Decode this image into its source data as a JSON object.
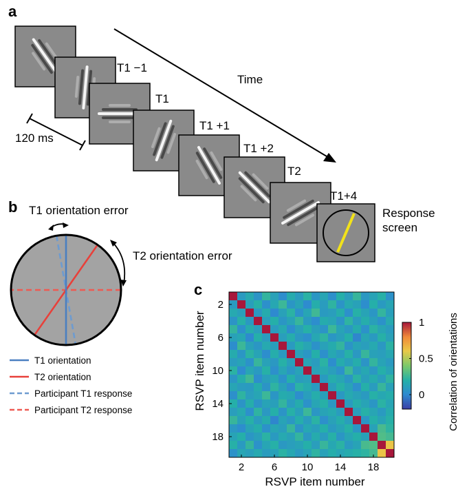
{
  "panel_a": {
    "letter": "a",
    "time_label": "Time",
    "duration_label": "120 ms",
    "frame_labels": [
      "T1 −1",
      "T1",
      "T1 +1",
      "T1 +2",
      "T2",
      "T1+4"
    ],
    "response_label_line1": "Response",
    "response_label_line2": "screen",
    "frame_orientations_deg": [
      -35,
      5,
      90,
      20,
      -30,
      -45,
      60
    ],
    "response_line_color": "#f2e21a"
  },
  "panel_b": {
    "letter": "b",
    "t1_error_label": "T1 orientation error",
    "t2_error_label": "T2 orientation error",
    "colors": {
      "t1": "#4a7fc1",
      "t2": "#e8403a",
      "t1_response": "#6d9bd0",
      "t2_response": "#ee5a52",
      "disc": "#a3a3a3"
    },
    "orientations_deg": {
      "t1": 90,
      "t2": 55,
      "t1_response": 100,
      "t2_response": 0
    },
    "legend": [
      {
        "label": "T1 orientation",
        "style": "solid",
        "color": "#4a7fc1"
      },
      {
        "label": "T2 orientation",
        "style": "solid",
        "color": "#e8403a"
      },
      {
        "label": "Participant T1 response",
        "style": "dashed",
        "color": "#6d9bd0"
      },
      {
        "label": "Participant T2 response",
        "style": "dashed",
        "color": "#ee5a52"
      }
    ]
  },
  "chart_data": {
    "type": "heatmap",
    "letter": "c",
    "xlabel": "RSVP item number",
    "ylabel": "RSVP item number",
    "xticks": [
      2,
      6,
      10,
      14,
      18
    ],
    "yticks": [
      2,
      6,
      10,
      14,
      18
    ],
    "n_items": 20,
    "colorbar": {
      "label": "Correlation of orientations",
      "ticks": [
        0,
        0.5,
        1
      ],
      "range": [
        -0.2,
        1
      ]
    },
    "diagonal_value": 1,
    "values": [
      [
        1,
        0.08,
        0.16,
        0.05,
        0.23,
        0.12,
        0.02,
        0.17,
        0.09,
        0.21,
        0.06,
        0.14,
        0.03,
        0.19,
        0.1,
        0.24,
        0.07,
        0.13,
        0.2,
        0.04
      ],
      [
        0.08,
        1,
        0.11,
        0.2,
        0.03,
        0.15,
        0.25,
        0.06,
        0.13,
        0.01,
        0.18,
        0.09,
        0.22,
        0.05,
        0.16,
        0.12,
        0.02,
        0.19,
        0.08,
        0.14
      ],
      [
        0.16,
        0.11,
        1,
        0.07,
        0.17,
        0,
        0.12,
        0.21,
        0.04,
        0.14,
        0.26,
        0.08,
        0.1,
        0.18,
        0.03,
        0.2,
        0.13,
        0.06,
        0.23,
        0.11
      ],
      [
        0.05,
        0.2,
        0.07,
        1,
        0.1,
        0.19,
        0.06,
        0.13,
        0.24,
        0.08,
        0.02,
        0.17,
        0.14,
        0.05,
        0.22,
        0.09,
        0.18,
        0.11,
        0.04,
        0.16
      ],
      [
        0.23,
        0.03,
        0.17,
        0.1,
        1,
        0.09,
        0.16,
        0.02,
        0.12,
        0.2,
        0.11,
        0.05,
        0.25,
        0.13,
        0.07,
        0.17,
        0.04,
        0.21,
        0.14,
        0.09
      ],
      [
        0.12,
        0.15,
        0,
        0.19,
        0.09,
        1,
        0.1,
        0.18,
        0.07,
        0.03,
        0.15,
        0.22,
        0.06,
        0.11,
        0.19,
        -0.01,
        0.14,
        0.08,
        0.2,
        0.12
      ],
      [
        0.02,
        0.25,
        0.12,
        0.06,
        0.16,
        0.1,
        1,
        0.08,
        0.2,
        0.14,
        0.04,
        0.12,
        0.17,
        0.23,
        0.05,
        0.13,
        0.1,
        0.16,
        0.07,
        0.21
      ],
      [
        0.17,
        0.06,
        0.21,
        0.13,
        0.02,
        0.18,
        0.08,
        1,
        0.11,
        0.06,
        0.19,
        0.03,
        0.15,
        0.09,
        0.2,
        0.07,
        0.24,
        0.12,
        0.1,
        0.15
      ],
      [
        0.09,
        0.13,
        0.04,
        0.24,
        0.12,
        0.07,
        0.2,
        0.11,
        1,
        0.13,
        0.09,
        0.21,
        0.02,
        0.17,
        0.11,
        0.18,
        0.05,
        0.23,
        0.13,
        0.08
      ],
      [
        0.21,
        0.01,
        0.14,
        0.08,
        0.2,
        0.03,
        0.14,
        0.06,
        0.13,
        1,
        0.12,
        0.16,
        0.1,
        0.04,
        0.25,
        0.09,
        0.15,
        0.07,
        0.19,
        0.13
      ],
      [
        0.06,
        0.18,
        0.26,
        0.02,
        0.11,
        0.15,
        0.04,
        0.19,
        0.09,
        0.12,
        1,
        0.08,
        0.18,
        0.14,
        0.06,
        0.21,
        0.11,
        0.17,
        0.1,
        0.22
      ],
      [
        0.14,
        0.09,
        0.08,
        0.17,
        0.05,
        0.22,
        0.12,
        0.03,
        0.21,
        0.16,
        0.08,
        1,
        0.11,
        0.2,
        0.13,
        0.03,
        0.19,
        0.09,
        0.24,
        0.12
      ],
      [
        0.03,
        0.22,
        0.1,
        0.14,
        0.25,
        0.06,
        0.17,
        0.15,
        0.02,
        0.1,
        0.18,
        0.11,
        1,
        0.07,
        0.16,
        0.12,
        0.08,
        0.2,
        0.15,
        0.18
      ],
      [
        0.19,
        0.05,
        0.18,
        0.05,
        0.13,
        0.11,
        0.23,
        0.09,
        0.17,
        0.04,
        0.14,
        0.2,
        0.07,
        1,
        0.09,
        0.18,
        0.13,
        0.06,
        0.21,
        0.14
      ],
      [
        0.1,
        0.16,
        0.03,
        0.22,
        0.07,
        0.19,
        0.05,
        0.2,
        0.11,
        0.25,
        0.06,
        0.13,
        0.16,
        0.09,
        1,
        0.1,
        0.2,
        0.14,
        0.08,
        0.17
      ],
      [
        0.24,
        0.12,
        0.2,
        0.09,
        0.17,
        -0.01,
        0.13,
        0.07,
        0.18,
        0.09,
        0.21,
        0.03,
        0.12,
        0.18,
        0.1,
        1,
        0.06,
        0.19,
        0.13,
        0.2
      ],
      [
        0.07,
        0.02,
        0.13,
        0.18,
        0.04,
        0.14,
        0.1,
        0.24,
        0.05,
        0.15,
        0.11,
        0.19,
        0.08,
        0.13,
        0.2,
        0.06,
        1,
        0.12,
        0.28,
        0.22
      ],
      [
        0.13,
        0.19,
        0.06,
        0.11,
        0.21,
        0.08,
        0.16,
        0.12,
        0.23,
        0.07,
        0.17,
        0.09,
        0.2,
        0.06,
        0.14,
        0.19,
        0.12,
        1,
        0.3,
        0.27
      ],
      [
        0.2,
        0.08,
        0.23,
        0.04,
        0.14,
        0.2,
        0.07,
        0.1,
        0.13,
        0.19,
        0.1,
        0.24,
        0.15,
        0.21,
        0.08,
        0.13,
        0.28,
        0.3,
        1,
        0.62
      ],
      [
        0.04,
        0.14,
        0.11,
        0.16,
        0.09,
        0.12,
        0.21,
        0.15,
        0.08,
        0.13,
        0.22,
        0.12,
        0.18,
        0.14,
        0.17,
        0.2,
        0.22,
        0.27,
        0.62,
        1
      ]
    ]
  }
}
